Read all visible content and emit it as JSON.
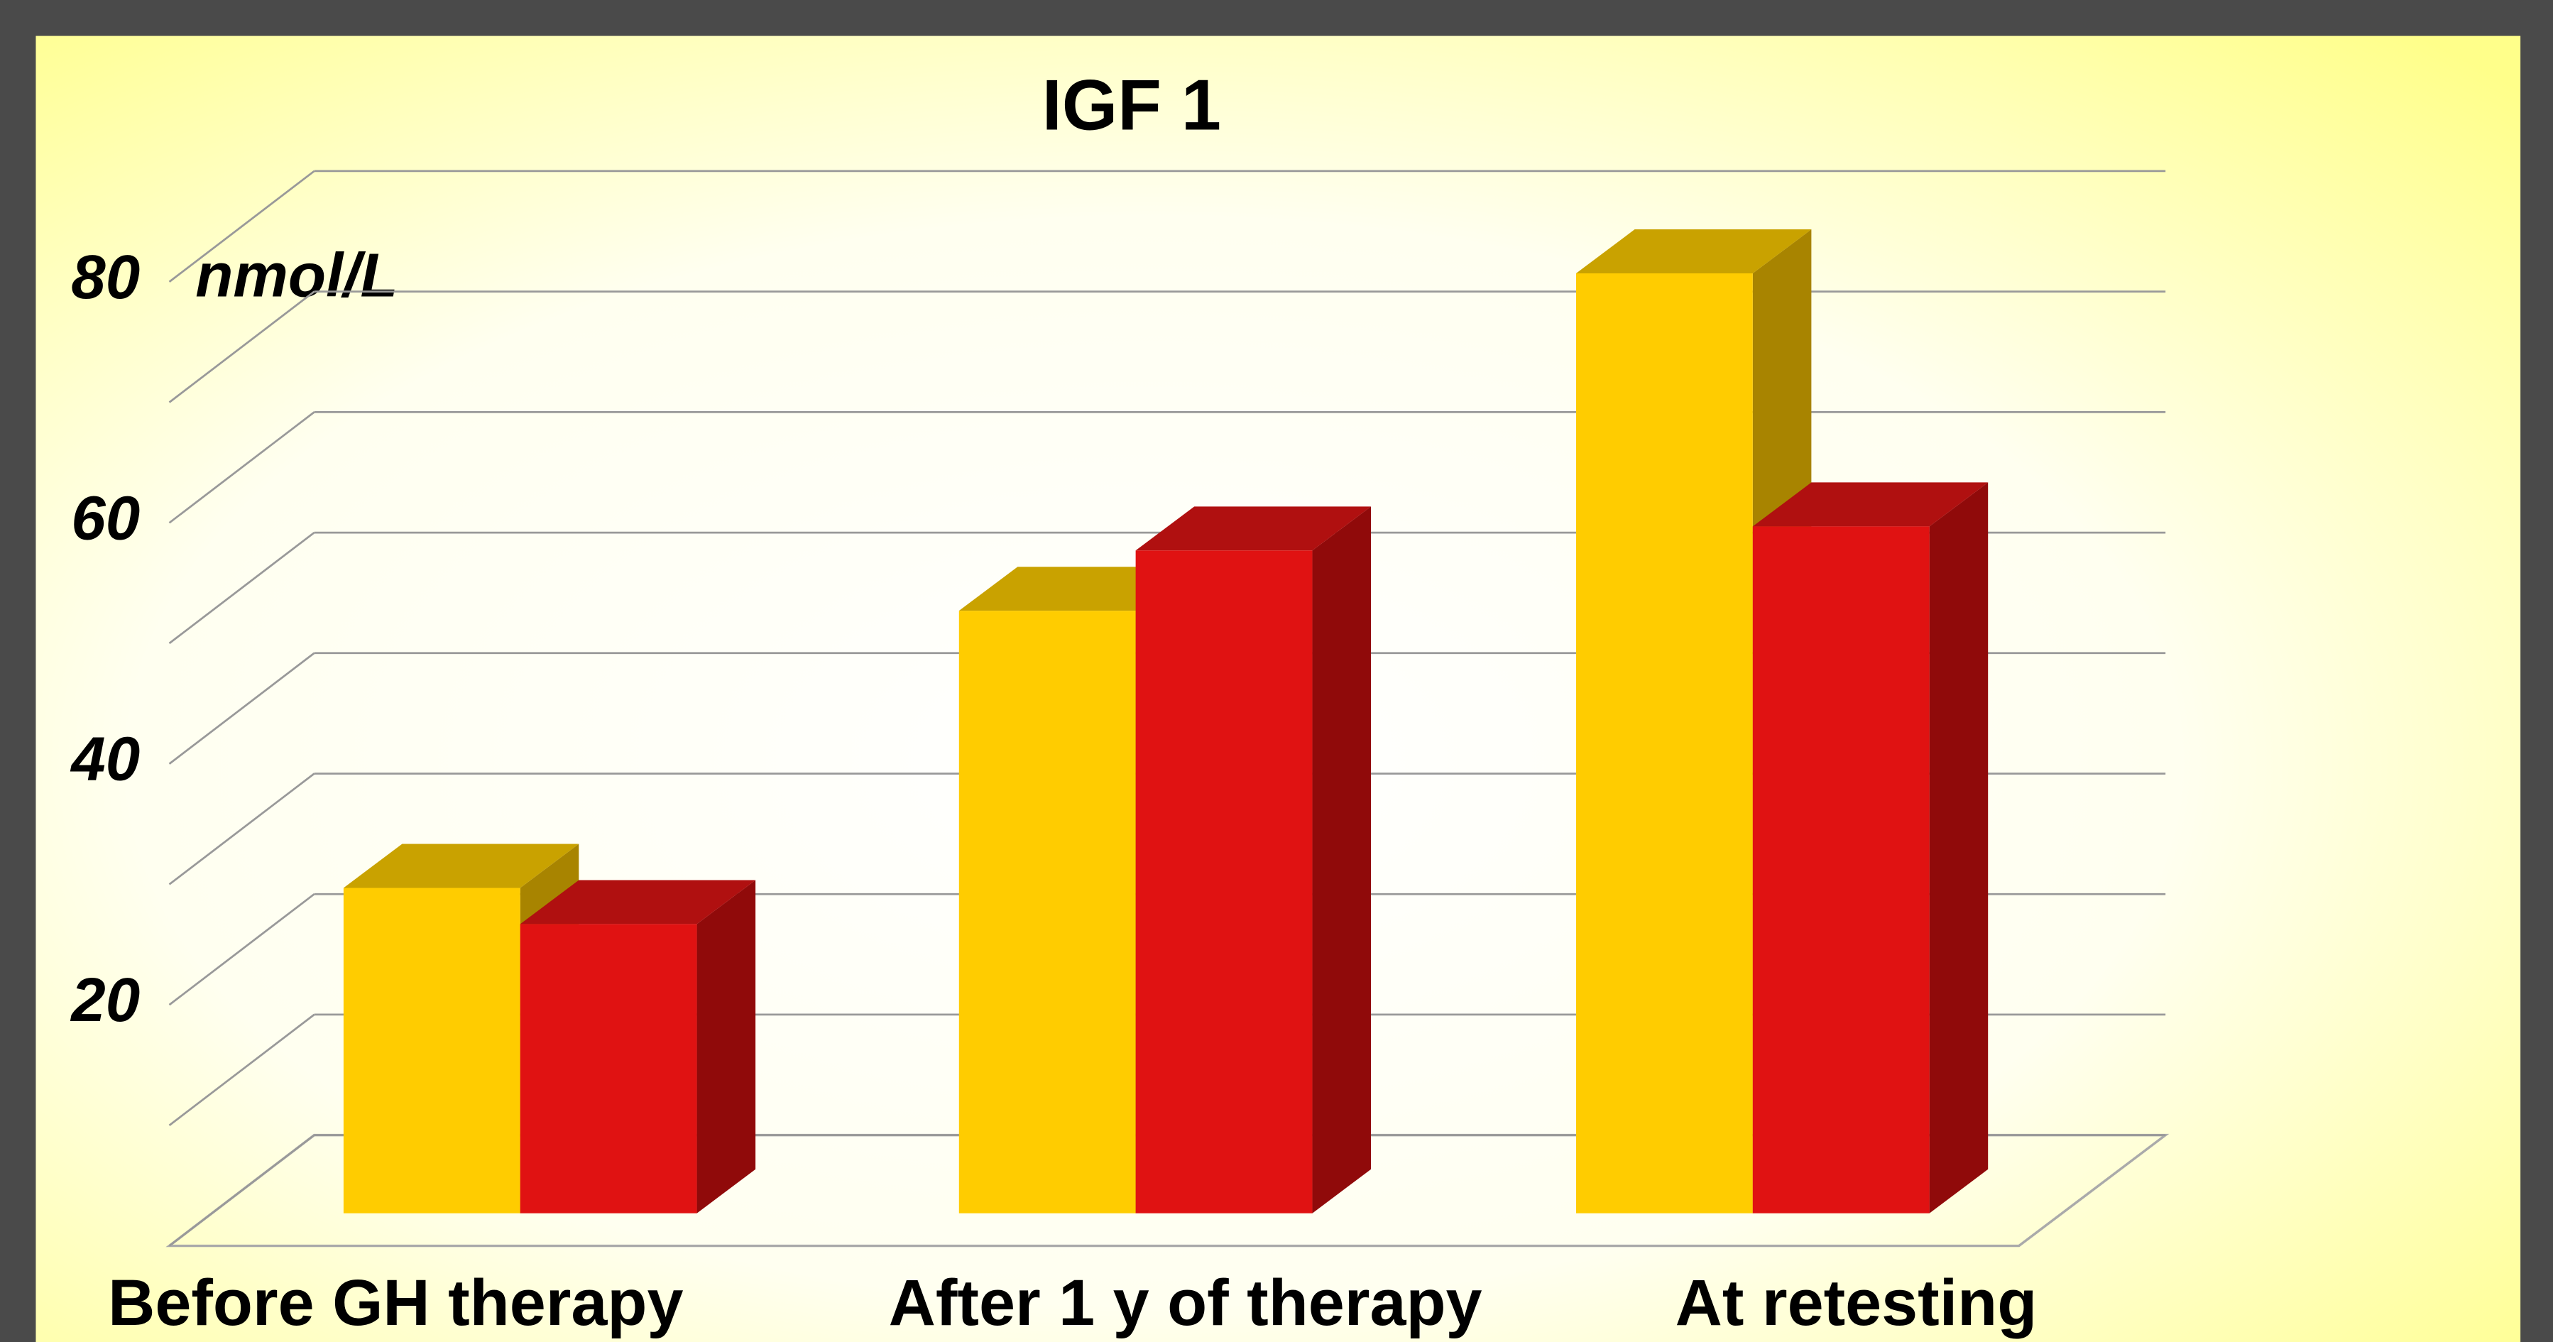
{
  "chart_data": {
    "type": "bar3d",
    "title": "IGF 1",
    "unit_label": "nmol/L",
    "categories": [
      "Before GH therapy",
      "After 1 y of therapy",
      "At retesting"
    ],
    "series": [
      {
        "color": "#ffcc00",
        "side_color": "#a88400",
        "top_color": "#c9a200",
        "values": [
          27,
          50,
          78
        ]
      },
      {
        "color": "#e01212",
        "side_color": "#900a0a",
        "top_color": "#b01010",
        "values": [
          24,
          55,
          57
        ]
      }
    ],
    "ylim": [
      0,
      80
    ],
    "yticks": [
      20,
      40,
      60,
      80
    ],
    "grid_lines": [
      0,
      10,
      20,
      30,
      40,
      50,
      60,
      70,
      80
    ],
    "grid": true
  }
}
